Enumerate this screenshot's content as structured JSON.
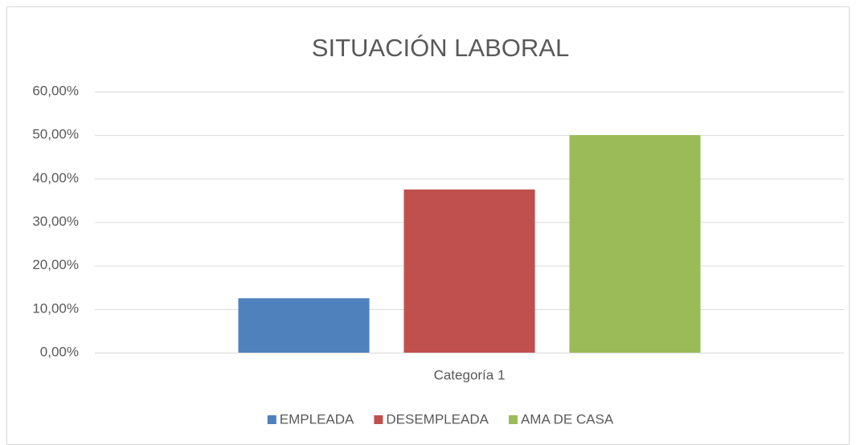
{
  "chart_data": {
    "type": "bar",
    "title": "SITUACIÓN LABORAL",
    "categories": [
      "Categoría 1"
    ],
    "series": [
      {
        "name": "EMPLEADA",
        "color": "#4f81bd",
        "values": [
          12.5
        ]
      },
      {
        "name": "DESEMPLEADA",
        "color": "#c0504d",
        "values": [
          37.5
        ]
      },
      {
        "name": "AMA DE CASA",
        "color": "#9bbb59",
        "values": [
          50
        ]
      }
    ],
    "ylim": [
      0,
      60
    ],
    "yticks": [
      {
        "value": 0,
        "label": "0,00%"
      },
      {
        "value": 10,
        "label": "10,00%"
      },
      {
        "value": 20,
        "label": "20,00%"
      },
      {
        "value": 30,
        "label": "30,00%"
      },
      {
        "value": 40,
        "label": "40,00%"
      },
      {
        "value": 50,
        "label": "50,00%"
      },
      {
        "value": 60,
        "label": "60,00%"
      }
    ],
    "grid": true,
    "legend": "bottom"
  }
}
